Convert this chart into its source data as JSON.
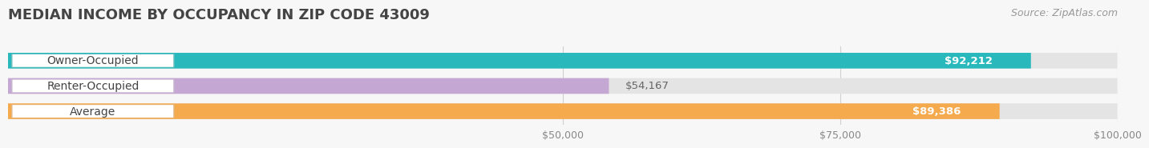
{
  "title": "MEDIAN INCOME BY OCCUPANCY IN ZIP CODE 43009",
  "source": "Source: ZipAtlas.com",
  "categories": [
    "Owner-Occupied",
    "Renter-Occupied",
    "Average"
  ],
  "values": [
    92212,
    54167,
    89386
  ],
  "bar_colors": [
    "#29b8bc",
    "#c4a8d3",
    "#f5aa4e"
  ],
  "xmax": 100000,
  "xticks": [
    50000,
    75000,
    100000
  ],
  "xtick_labels": [
    "$50,000",
    "$75,000",
    "$100,000"
  ],
  "background_color": "#f7f7f7",
  "track_color": "#e4e4e4",
  "title_fontsize": 13,
  "source_fontsize": 9,
  "label_fontsize": 10,
  "value_fontsize": 9.5
}
